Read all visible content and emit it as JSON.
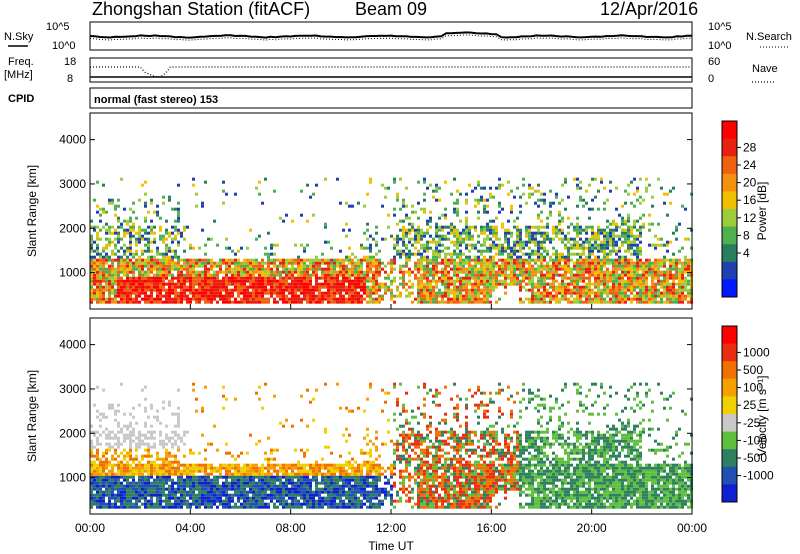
{
  "header": {
    "station": "Zhongshan Station (fitACF)",
    "beam": "Beam 09",
    "date": "12/Apr/2016"
  },
  "meta_panels": {
    "nsky_label": "N.Sky",
    "nsearch_label": "N.Search",
    "noise_ticks": [
      "10^5",
      "10^0"
    ],
    "freq_label": "Freq.",
    "freq_unit": "[MHz]",
    "freq_ticks": [
      "18",
      "8"
    ],
    "nave_label": "Nave",
    "nave_ticks": [
      "60",
      "0"
    ],
    "cpid_label": "CPID",
    "cpid_text": "normal (fast stereo) 153"
  },
  "chart_data": [
    {
      "type": "heatmap",
      "name": "power",
      "ylabel": "Slant Range [km]",
      "xlabel": "",
      "ylim": [
        180,
        4600
      ],
      "yticks": [
        "1000",
        "2000",
        "3000",
        "4000"
      ],
      "ytick_values": [
        1000,
        2000,
        3000,
        4000
      ],
      "colorbar_label": "Power [dB]",
      "colorbar_ticks": [
        "28",
        "24",
        "20",
        "16",
        "12",
        "8",
        "4"
      ],
      "colorbar_colors": [
        "#0019ff",
        "#2040b0",
        "#2a7e60",
        "#4fb050",
        "#9ccc3c",
        "#f0c000",
        "#f59010",
        "#f06010",
        "#e82010",
        "#ff0000"
      ],
      "band_description": "dense echoes 300-1300 km, patchy echoes to 3000 km"
    },
    {
      "type": "heatmap",
      "name": "velocity",
      "ylabel": "Slant Range [km]",
      "xlabel": "Time UT",
      "ylim": [
        180,
        4600
      ],
      "yticks": [
        "1000",
        "2000",
        "3000",
        "4000"
      ],
      "ytick_values": [
        1000,
        2000,
        3000,
        4000
      ],
      "xticks": [
        "00:00",
        "04:00",
        "08:00",
        "12:00",
        "16:00",
        "20:00",
        "00:00"
      ],
      "xtick_hours": [
        0,
        4,
        8,
        12,
        16,
        20,
        24
      ],
      "colorbar_label": "Velocity [m s⁻¹]",
      "colorbar_ticks": [
        "1000",
        "500",
        "100",
        "25",
        "-25",
        "-100",
        "-500",
        "-1000"
      ],
      "colorbar_colors": [
        "#1020d0",
        "#2050b0",
        "#2f8060",
        "#5fbf3f",
        "#c8c8c8",
        "#f0d000",
        "#f5a000",
        "#f07000",
        "#e83010",
        "#ff0000"
      ]
    }
  ]
}
